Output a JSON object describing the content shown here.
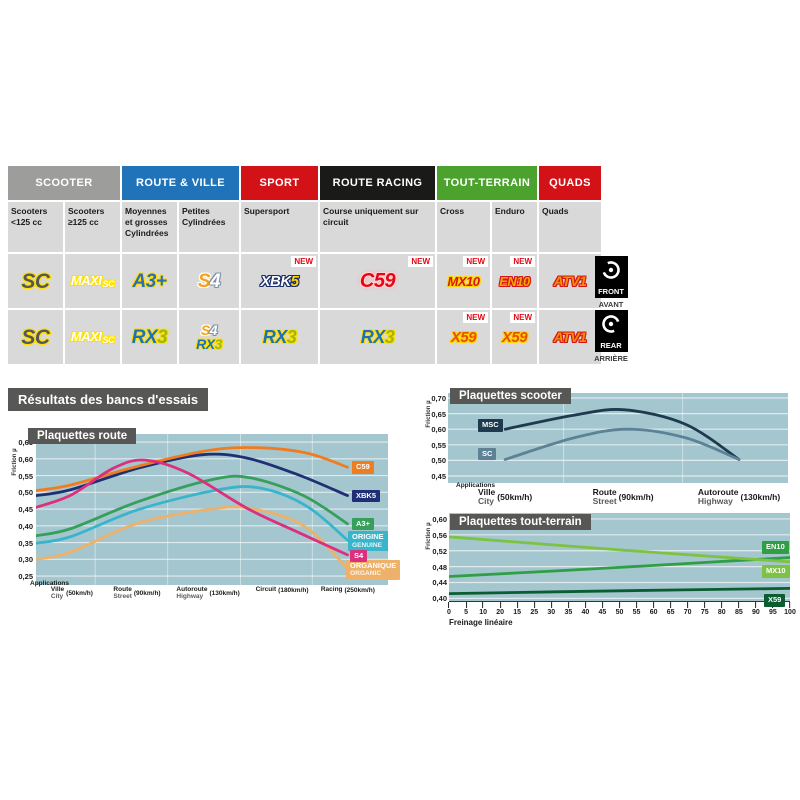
{
  "results_title": "Résultats des bancs d'essais",
  "positions": {
    "front": {
      "en": "FRONT",
      "fr": "AVANT"
    },
    "rear": {
      "en": "REAR",
      "fr": "ARRIÈRE"
    }
  },
  "table": {
    "new_label": "NEW",
    "groups": [
      {
        "label": "SCOOTER",
        "color": "#9d9d9c",
        "span": 2
      },
      {
        "label": "ROUTE & VILLE",
        "color": "#2173b9",
        "span": 2
      },
      {
        "label": "SPORT",
        "color": "#d21217",
        "span": 1
      },
      {
        "label": "ROUTE RACING",
        "color": "#1a1a18",
        "span": 1
      },
      {
        "label": "TOUT-TERRAIN",
        "color": "#4ba32d",
        "span": 2
      },
      {
        "label": "QUADS",
        "color": "#d21217",
        "span": 1
      }
    ],
    "columns": [
      "Scooters <125 cc",
      "Scooters ≥125 cc",
      "Moyennes et grosses Cylindrées",
      "Petites Cylindrées",
      "Supersport",
      "Course uniquement sur circuit",
      "Cross",
      "Enduro",
      "Quads"
    ],
    "rows": [
      {
        "name": "front",
        "cells": [
          {
            "products": [
              {
                "size": 21,
                "segs": [
                  {
                    "t": "SC",
                    "c": "sc"
                  }
                ]
              }
            ]
          },
          {
            "products": [
              {
                "size": 13,
                "segs": [
                  {
                    "t": "MAXI",
                    "c": "maxi"
                  },
                  {
                    "t": "SC",
                    "c": "maxi sub"
                  }
                ]
              }
            ]
          },
          {
            "products": [
              {
                "size": 19,
                "segs": [
                  {
                    "t": "A3+",
                    "c": "a3"
                  }
                ]
              }
            ]
          },
          {
            "products": [
              {
                "size": 19,
                "segs": [
                  {
                    "t": "S",
                    "c": "s4s"
                  },
                  {
                    "t": "4",
                    "c": "s4f"
                  }
                ]
              }
            ]
          },
          {
            "new": true,
            "products": [
              {
                "size": 15,
                "segs": [
                  {
                    "t": "XBK",
                    "c": "xbk"
                  },
                  {
                    "t": "5",
                    "c": "xbk5"
                  }
                ]
              }
            ]
          },
          {
            "new": true,
            "products": [
              {
                "size": 20,
                "segs": [
                  {
                    "t": "C59",
                    "c": "c59"
                  }
                ]
              }
            ]
          },
          {
            "new": true,
            "products": [
              {
                "size": 13,
                "segs": [
                  {
                    "t": "MX10",
                    "c": "mx10"
                  }
                ]
              }
            ]
          },
          {
            "new": true,
            "products": [
              {
                "size": 13,
                "segs": [
                  {
                    "t": "EN10",
                    "c": "en10"
                  }
                ]
              }
            ]
          },
          {
            "products": [
              {
                "size": 14,
                "segs": [
                  {
                    "t": "ATV1",
                    "c": "atv1"
                  }
                ]
              }
            ]
          }
        ]
      },
      {
        "name": "rear",
        "cells": [
          {
            "products": [
              {
                "size": 21,
                "segs": [
                  {
                    "t": "SC",
                    "c": "sc"
                  }
                ]
              }
            ]
          },
          {
            "products": [
              {
                "size": 13,
                "segs": [
                  {
                    "t": "MAXI",
                    "c": "maxi"
                  },
                  {
                    "t": "SC",
                    "c": "maxi sub"
                  }
                ]
              }
            ]
          },
          {
            "products": [
              {
                "size": 19,
                "segs": [
                  {
                    "t": "RX",
                    "c": "rx"
                  },
                  {
                    "t": "3",
                    "c": "rx3"
                  }
                ]
              }
            ]
          },
          {
            "stack": true,
            "products": [
              {
                "size": 14,
                "segs": [
                  {
                    "t": "S",
                    "c": "s4s"
                  },
                  {
                    "t": "4",
                    "c": "s4f"
                  }
                ]
              },
              {
                "size": 14,
                "segs": [
                  {
                    "t": "RX",
                    "c": "rx"
                  },
                  {
                    "t": "3",
                    "c": "rx3"
                  }
                ]
              }
            ]
          },
          {
            "products": [
              {
                "size": 18,
                "segs": [
                  {
                    "t": "RX",
                    "c": "rx"
                  },
                  {
                    "t": "3",
                    "c": "rx3"
                  }
                ]
              }
            ]
          },
          {
            "products": [
              {
                "size": 18,
                "segs": [
                  {
                    "t": "RX",
                    "c": "rx"
                  },
                  {
                    "t": "3",
                    "c": "rx3"
                  }
                ]
              }
            ]
          },
          {
            "new": true,
            "products": [
              {
                "size": 15,
                "segs": [
                  {
                    "t": "X59",
                    "c": "x59"
                  }
                ]
              }
            ]
          },
          {
            "new": true,
            "products": [
              {
                "size": 15,
                "segs": [
                  {
                    "t": "X59",
                    "c": "x59"
                  }
                ]
              }
            ]
          },
          {
            "products": [
              {
                "size": 14,
                "segs": [
                  {
                    "t": "ATV1",
                    "c": "atv1"
                  }
                ]
              }
            ]
          }
        ]
      }
    ]
  },
  "chart_colors": {
    "plot_bg": "#a4c6cf",
    "grid": "rgba(255,255,255,0.65)",
    "vgrid": "rgba(255,255,255,0.45)",
    "title_bg": "#575756"
  },
  "chart_data": [
    {
      "id": "route",
      "type": "line",
      "title": "Plaquettes route",
      "ylabel": "Friction µ",
      "xlabel": "Applications",
      "ylim": [
        0.25,
        0.65
      ],
      "yticks": [
        0.65,
        0.6,
        0.55,
        0.5,
        0.45,
        0.4,
        0.35,
        0.3,
        0.25
      ],
      "ytick_labels": [
        "0,65",
        "0,60",
        "0,55",
        "0,50",
        "0,45",
        "0,40",
        "0,35",
        "0,30",
        "0,25"
      ],
      "grid": true,
      "legend_position": "right",
      "xcats": [
        {
          "fr": "Ville",
          "en": "City",
          "speed": "(50km/h)"
        },
        {
          "fr": "Route",
          "en": "Street",
          "speed": "(90km/h)"
        },
        {
          "fr": "Autoroute",
          "en": "Highway",
          "speed": "(130km/h)"
        },
        {
          "fr": "Circuit",
          "en": "",
          "speed": "(180km/h)"
        },
        {
          "fr": "Racing",
          "en": "",
          "speed": "(250km/h)"
        }
      ],
      "series": [
        {
          "name": "ORGANIQUE",
          "labels": [
            "ORGANIQUE",
            "ORGANIC"
          ],
          "color": "#edb169",
          "points": [
            [
              0,
              0.3
            ],
            [
              0.1,
              0.322
            ],
            [
              0.29,
              0.408
            ],
            [
              0.5,
              0.45
            ],
            [
              0.61,
              0.452
            ],
            [
              0.76,
              0.4
            ],
            [
              0.885,
              0.272
            ]
          ]
        },
        {
          "name": "ORIGINE",
          "labels": [
            "ORIGINE",
            "GENUINE"
          ],
          "color": "#39b5cb",
          "points": [
            [
              0,
              0.348
            ],
            [
              0.1,
              0.368
            ],
            [
              0.29,
              0.448
            ],
            [
              0.52,
              0.508
            ],
            [
              0.64,
              0.512
            ],
            [
              0.77,
              0.458
            ],
            [
              0.885,
              0.357
            ]
          ]
        },
        {
          "name": "A3+",
          "labels": [
            "A3+"
          ],
          "color": "#36a05a",
          "points": [
            [
              0,
              0.37
            ],
            [
              0.1,
              0.392
            ],
            [
              0.29,
              0.472
            ],
            [
              0.5,
              0.538
            ],
            [
              0.61,
              0.543
            ],
            [
              0.76,
              0.49
            ],
            [
              0.885,
              0.406
            ]
          ]
        },
        {
          "name": "XBK5",
          "labels": [
            "XBK5"
          ],
          "color": "#1f2f73",
          "points": [
            [
              0,
              0.49
            ],
            [
              0.1,
              0.508
            ],
            [
              0.29,
              0.572
            ],
            [
              0.47,
              0.612
            ],
            [
              0.6,
              0.602
            ],
            [
              0.75,
              0.55
            ],
            [
              0.885,
              0.49
            ]
          ]
        },
        {
          "name": "C59",
          "labels": [
            "C59"
          ],
          "color": "#ef7d1f",
          "points": [
            [
              0,
              0.505
            ],
            [
              0.1,
              0.522
            ],
            [
              0.29,
              0.578
            ],
            [
              0.49,
              0.625
            ],
            [
              0.63,
              0.633
            ],
            [
              0.77,
              0.617
            ],
            [
              0.885,
              0.575
            ]
          ]
        },
        {
          "name": "S4",
          "labels": [
            "S4"
          ],
          "color": "#dc2f7d",
          "points": [
            [
              0,
              0.455
            ],
            [
              0.1,
              0.492
            ],
            [
              0.22,
              0.572
            ],
            [
              0.31,
              0.596
            ],
            [
              0.43,
              0.558
            ],
            [
              0.6,
              0.452
            ],
            [
              0.75,
              0.378
            ],
            [
              0.885,
              0.313
            ]
          ]
        }
      ]
    },
    {
      "id": "scooter",
      "type": "line",
      "title": "Plaquettes scooter",
      "ylabel": "Friction µ",
      "xlabel": "Applications",
      "ylim": [
        0.45,
        0.7
      ],
      "yticks": [
        0.7,
        0.65,
        0.6,
        0.55,
        0.5,
        0.45
      ],
      "ytick_labels": [
        "0,70",
        "0,65",
        "0,60",
        "0,55",
        "0,50",
        "0,45"
      ],
      "grid": true,
      "legend_position": "inside-left",
      "xcats": [
        {
          "fr": "Ville",
          "en": "City",
          "speed": "(50km/h)"
        },
        {
          "fr": "Route",
          "en": "Street",
          "speed": "(90km/h)"
        },
        {
          "fr": "Autoroute",
          "en": "Highway",
          "speed": "(130km/h)"
        }
      ],
      "series": [
        {
          "name": "MSC",
          "labels": [
            "MSC"
          ],
          "color": "#1d3a4e",
          "points": [
            [
              0.168,
              0.6
            ],
            [
              0.37,
              0.645
            ],
            [
              0.52,
              0.662
            ],
            [
              0.7,
              0.615
            ],
            [
              0.856,
              0.503
            ]
          ]
        },
        {
          "name": "SC",
          "labels": [
            "SC"
          ],
          "color": "#5d8296",
          "points": [
            [
              0.168,
              0.503
            ],
            [
              0.37,
              0.572
            ],
            [
              0.53,
              0.6
            ],
            [
              0.7,
              0.572
            ],
            [
              0.856,
              0.503
            ]
          ]
        }
      ]
    },
    {
      "id": "tt",
      "type": "line",
      "title": "Plaquettes tout-terrain",
      "ylabel": "Friction µ",
      "xlabel": "Freinage linéaire",
      "ylim": [
        0.4,
        0.6
      ],
      "yticks": [
        0.6,
        0.56,
        0.52,
        0.48,
        0.44,
        0.4
      ],
      "ytick_labels": [
        "0,60",
        "0,56",
        "0,52",
        "0,48",
        "0,44",
        "0,40"
      ],
      "grid": true,
      "legend_position": "right",
      "xticks_as_displayed": [
        "0",
        "5",
        "10",
        "20",
        "15",
        "25",
        "30",
        "35",
        "40",
        "45",
        "50",
        "55",
        "60",
        "65",
        "70",
        "75",
        "80",
        "85",
        "90",
        "95",
        "100"
      ],
      "series": [
        {
          "name": "EN10",
          "labels": [
            "EN10"
          ],
          "color": "#2f9e44",
          "points": [
            [
              0,
              0.455
            ],
            [
              0.5,
              0.478
            ],
            [
              1,
              0.503
            ]
          ]
        },
        {
          "name": "MX10",
          "labels": [
            "MX10"
          ],
          "color": "#7dc242",
          "points": [
            [
              0,
              0.555
            ],
            [
              0.5,
              0.522
            ],
            [
              1,
              0.492
            ]
          ]
        },
        {
          "name": "X59",
          "labels": [
            "X59"
          ],
          "color": "#0b5c31",
          "points": [
            [
              0,
              0.412
            ],
            [
              0.5,
              0.419
            ],
            [
              1,
              0.425
            ]
          ]
        }
      ]
    }
  ]
}
